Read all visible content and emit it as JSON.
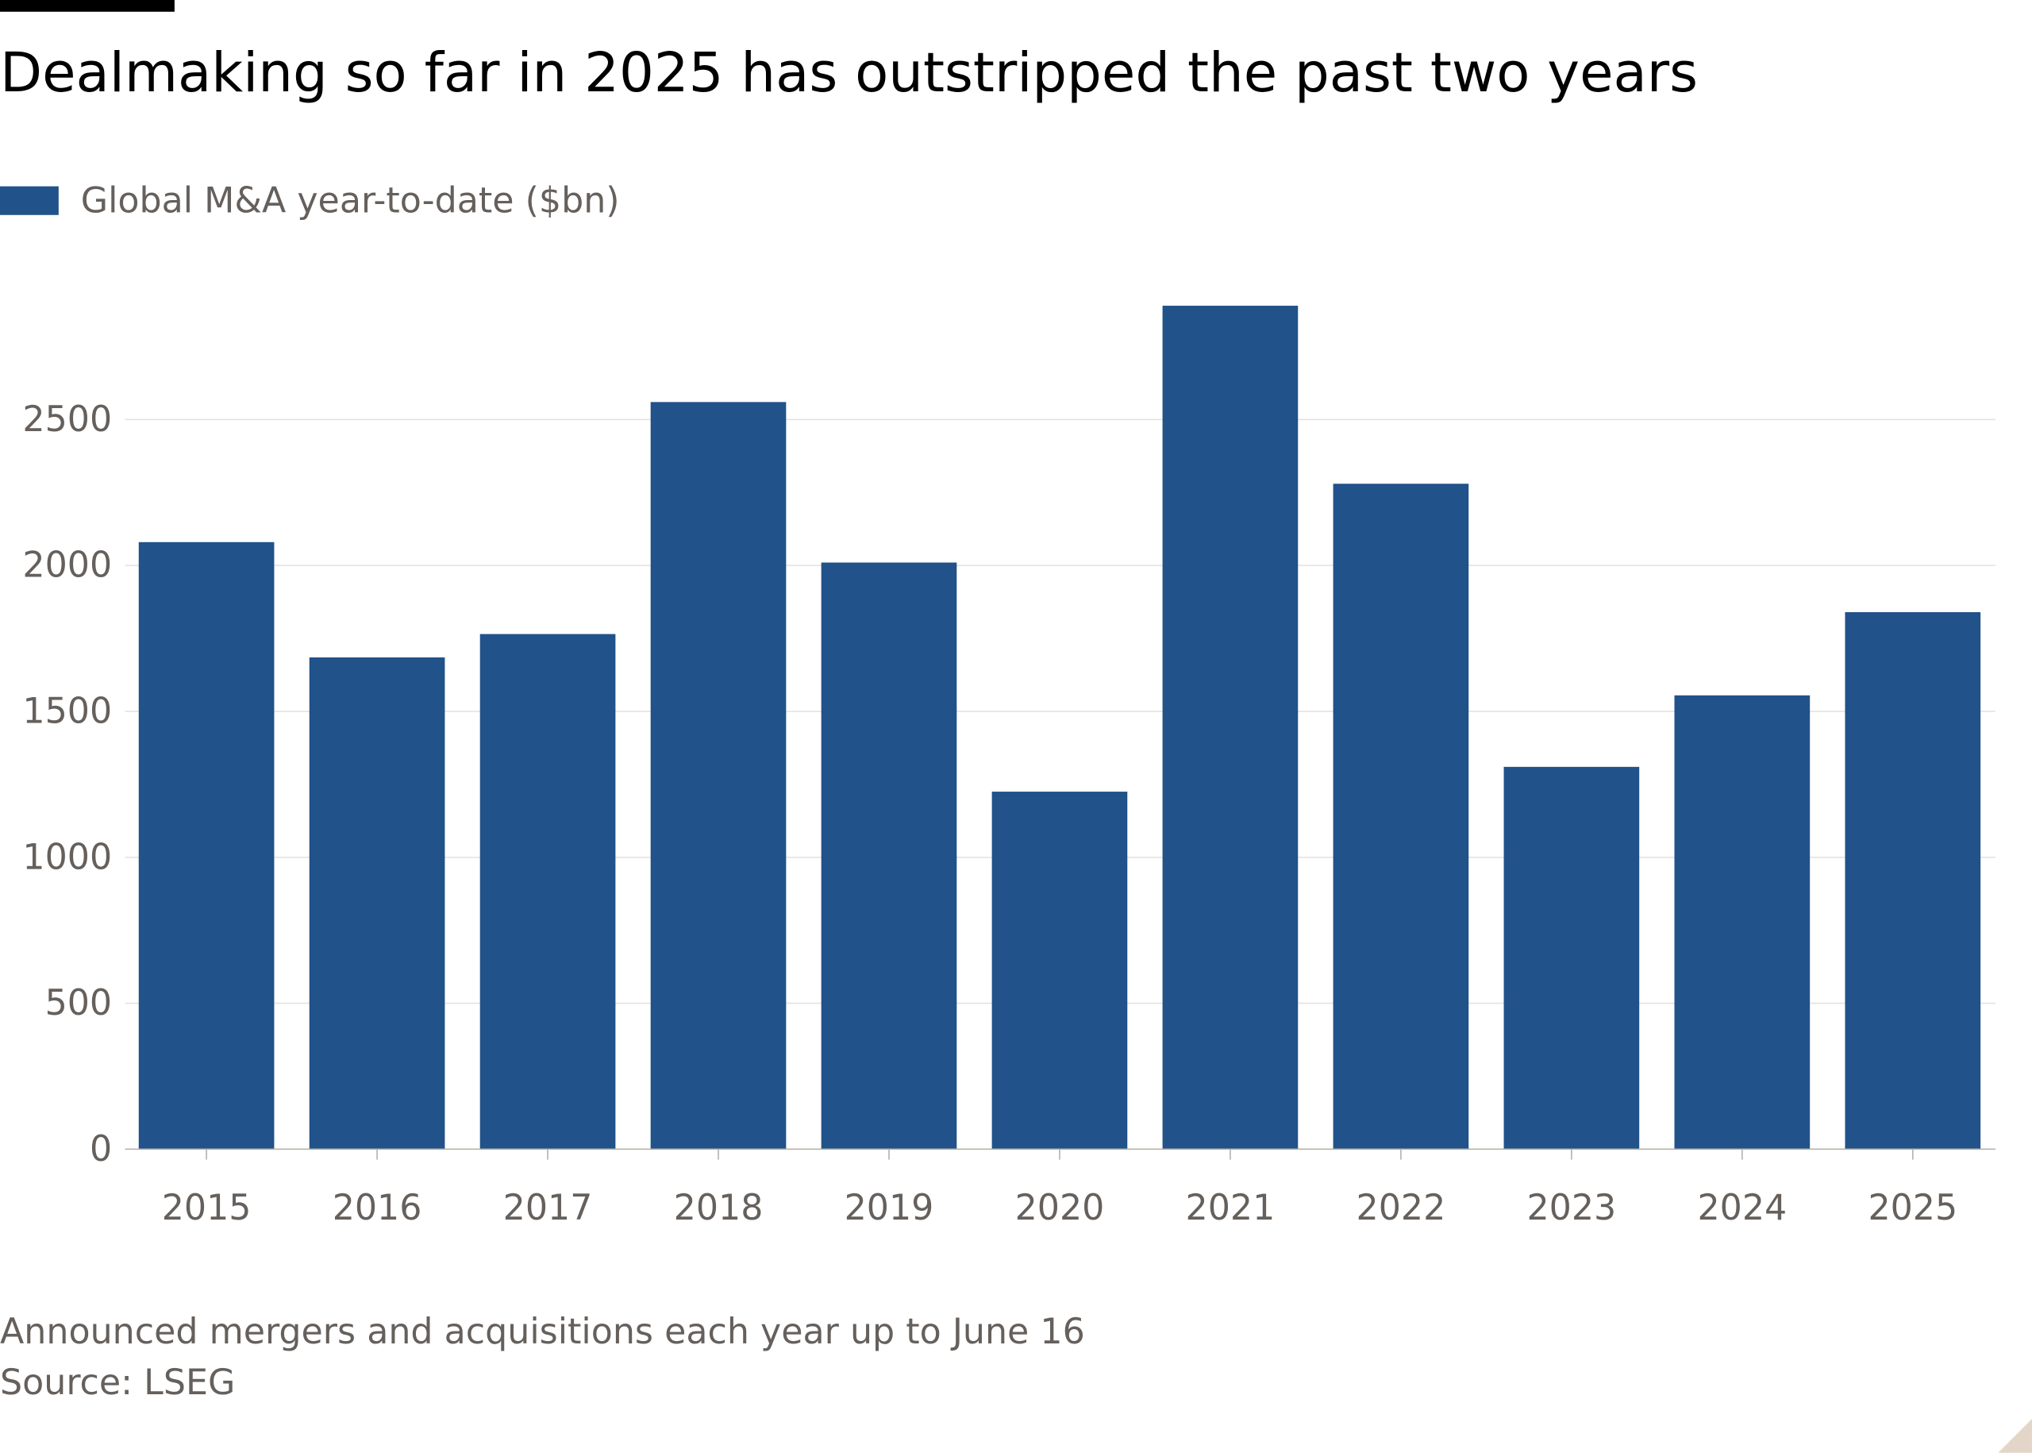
{
  "chart_data": {
    "type": "bar",
    "title": "Dealmaking so far in 2025 has outstripped the past two years",
    "legend": {
      "position": "top-left"
    },
    "series": [
      {
        "name": "Global M&A year-to-date ($bn)",
        "color": "#215289",
        "values": [
          2080,
          1685,
          1765,
          2560,
          2010,
          1225,
          2890,
          2280,
          1310,
          1555,
          1840
        ]
      }
    ],
    "categories": [
      "2015",
      "2016",
      "2017",
      "2018",
      "2019",
      "2020",
      "2021",
      "2022",
      "2023",
      "2024",
      "2025"
    ],
    "yticks": [
      "0",
      "500",
      "1000",
      "1500",
      "2000",
      "2500"
    ],
    "ylim": [
      0,
      3000
    ],
    "grid": true,
    "xlabel": "",
    "ylabel": ""
  },
  "footnotes": {
    "note": "Announced mergers and acquisitions each year up to June 16",
    "source": "Source: LSEG"
  }
}
